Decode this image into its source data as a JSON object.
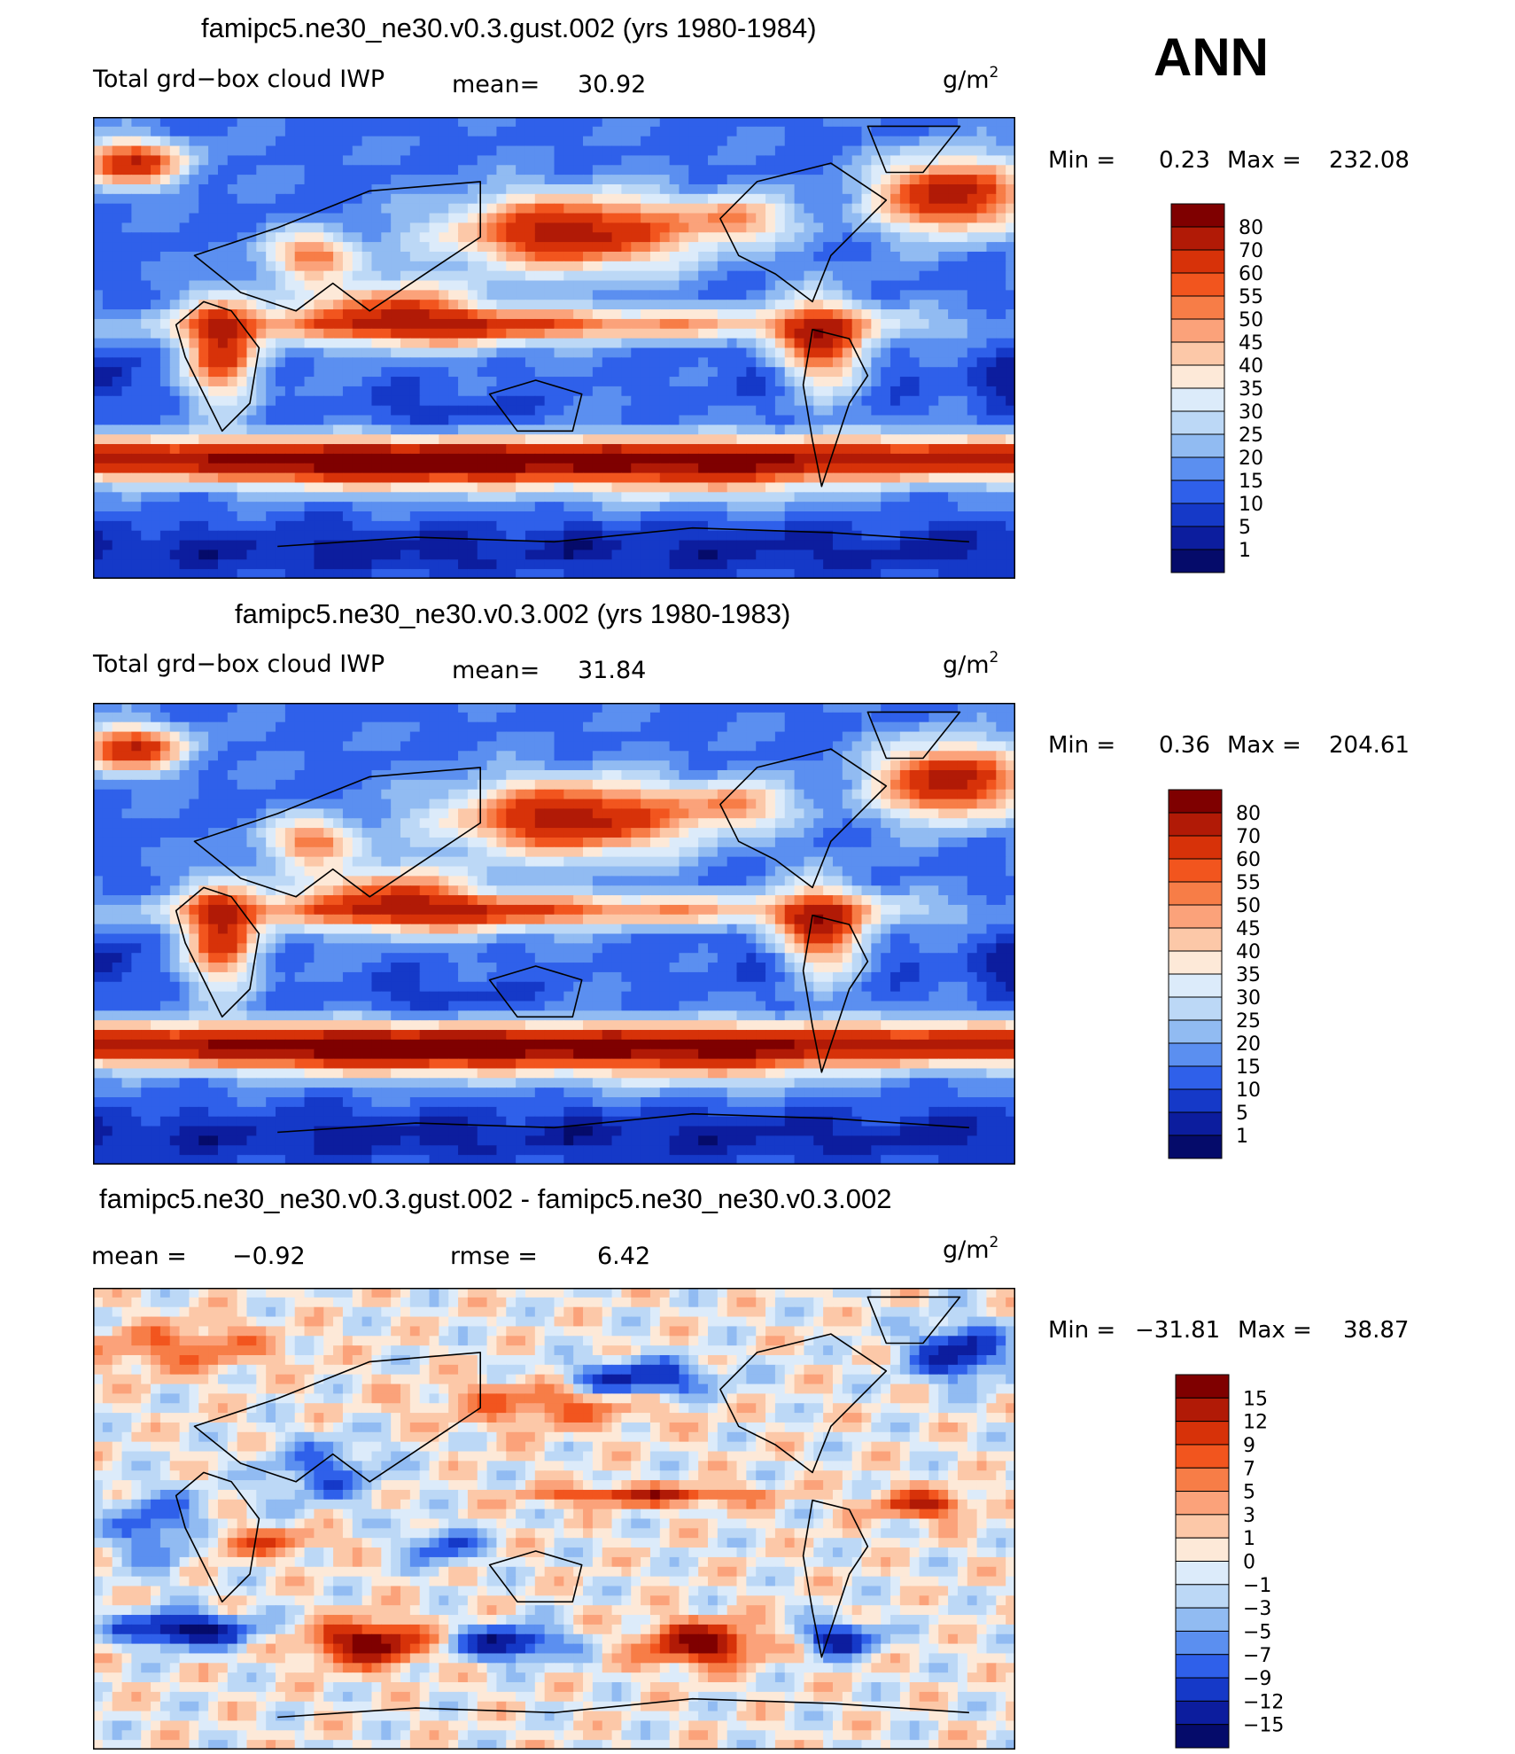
{
  "season": "ANN",
  "unit_base": "g/m",
  "unit_exp": "2",
  "chart_data": [
    {
      "type": "heatmap",
      "title": "famipc5.ne30_ne30.v0.3.gust.002 (yrs 1980-1984)",
      "variable": "Total grd−box cloud IWP",
      "mean_label": "mean=",
      "mean": "30.92",
      "min_label": "Min =",
      "min": "0.23",
      "max_label": "Max =",
      "max": "232.08",
      "colorbar_levels": [
        "80",
        "70",
        "60",
        "55",
        "50",
        "45",
        "40",
        "35",
        "30",
        "25",
        "20",
        "15",
        "10",
        "5",
        "1"
      ],
      "colorbar_colors": [
        "#7f0000",
        "#b11a06",
        "#d73209",
        "#f2551e",
        "#f77d47",
        "#fba27a",
        "#fcc8a8",
        "#fde9d8",
        "#dcebfa",
        "#bcd8f6",
        "#91bbf2",
        "#5b8ff0",
        "#2f60ea",
        "#1539c8",
        "#0c1d9e",
        "#050b6a"
      ]
    },
    {
      "type": "heatmap",
      "title": "famipc5.ne30_ne30.v0.3.002 (yrs 1980-1983)",
      "variable": "Total grd−box cloud IWP",
      "mean_label": "mean=",
      "mean": "31.84",
      "min_label": "Min =",
      "min": "0.36",
      "max_label": "Max =",
      "max": "204.61",
      "colorbar_levels": [
        "80",
        "70",
        "60",
        "55",
        "50",
        "45",
        "40",
        "35",
        "30",
        "25",
        "20",
        "15",
        "10",
        "5",
        "1"
      ],
      "colorbar_colors": [
        "#7f0000",
        "#b11a06",
        "#d73209",
        "#f2551e",
        "#f77d47",
        "#fba27a",
        "#fcc8a8",
        "#fde9d8",
        "#dcebfa",
        "#bcd8f6",
        "#91bbf2",
        "#5b8ff0",
        "#2f60ea",
        "#1539c8",
        "#0c1d9e",
        "#050b6a"
      ]
    },
    {
      "type": "heatmap",
      "title": "famipc5.ne30_ne30.v0.3.gust.002 - famipc5.ne30_ne30.v0.3.002",
      "mean_label": "mean =",
      "mean": "−0.92",
      "rmse_label": "rmse =",
      "rmse": "6.42",
      "min_label": "Min =",
      "min": "−31.81",
      "max_label": "Max =",
      "max": "38.87",
      "colorbar_levels": [
        "15",
        "12",
        "9",
        "7",
        "5",
        "3",
        "1",
        "0",
        "−1",
        "−3",
        "−5",
        "−7",
        "−9",
        "−12",
        "−15"
      ],
      "colorbar_colors": [
        "#7f0000",
        "#b11a06",
        "#d73209",
        "#f2551e",
        "#f77d47",
        "#fba27a",
        "#fcc8a8",
        "#fde9d8",
        "#dcebfa",
        "#bcd8f6",
        "#91bbf2",
        "#5b8ff0",
        "#2f60ea",
        "#1539c8",
        "#0c1d9e",
        "#050b6a"
      ]
    }
  ]
}
